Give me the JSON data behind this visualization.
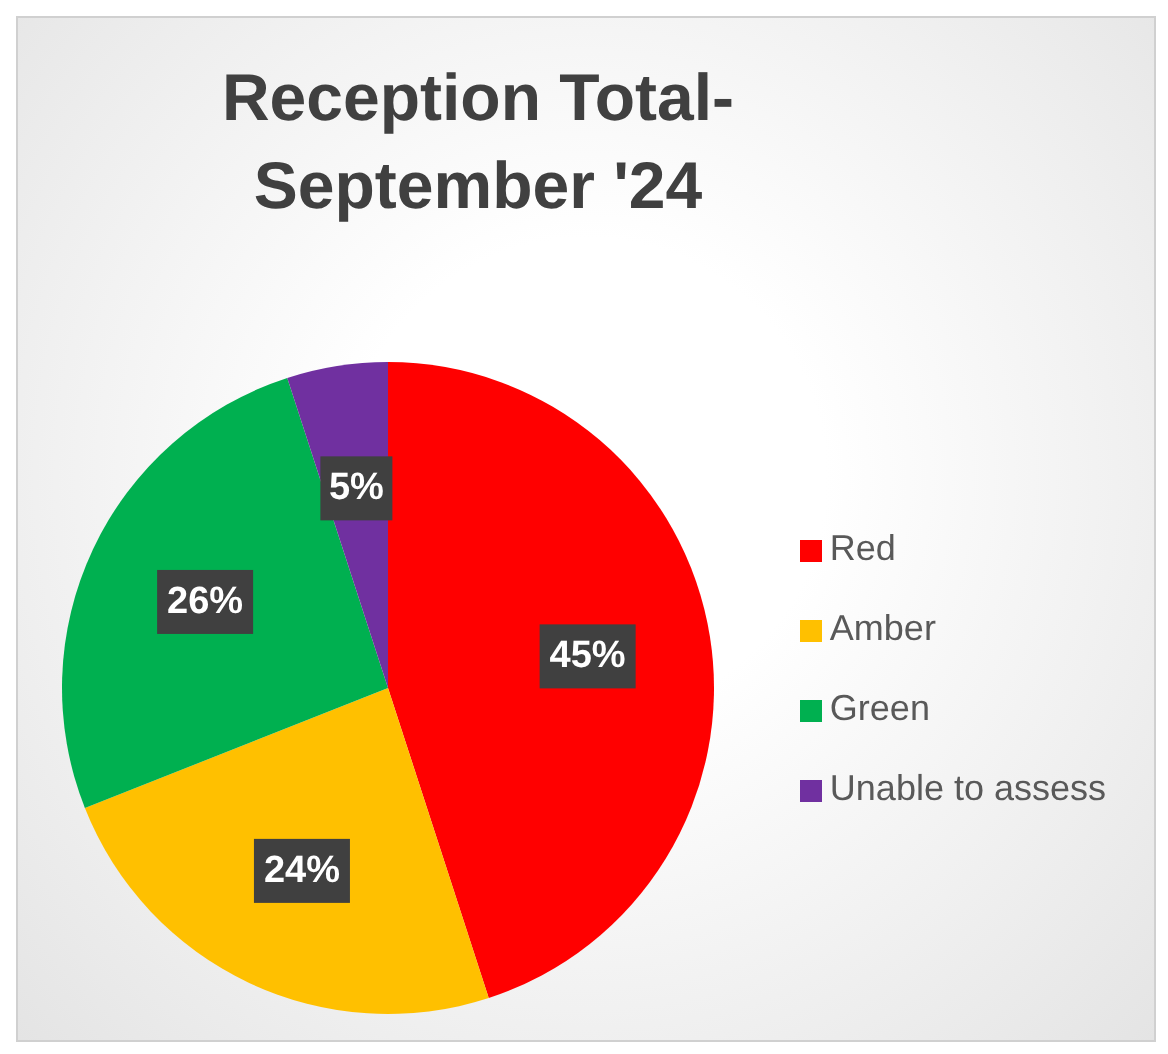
{
  "chart_data": {
    "type": "pie",
    "title": "Reception Total-September '24",
    "categories": [
      "Red",
      "Amber",
      "Green",
      "Unable to assess"
    ],
    "values": [
      45,
      24,
      26,
      5
    ],
    "colors": [
      "#ff0000",
      "#ffc000",
      "#00b050",
      "#7030a0"
    ],
    "value_labels": [
      "45%",
      "24%",
      "26%",
      "5%"
    ],
    "legend": "right"
  }
}
